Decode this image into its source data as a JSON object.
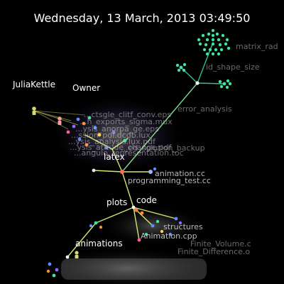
{
  "timestamp": "Wednesday, 13 March, 2013 03:49:50",
  "users": {
    "julia": "JuliaKettle",
    "owner": "Owner"
  },
  "directories": {
    "latex": "latex",
    "plots": "plots",
    "code": "code",
    "animations": "animations"
  },
  "files": {
    "matrix_rad": "matrix_rad",
    "id_shape_size": "id_shape_size",
    "error_analysis": "error_analysis",
    "animation_cc": "animation.cc",
    "programming_test": "programming_test.cc",
    "structures": "structures",
    "animation_cpp": "Animation.cpp",
    "finite_volume": "Finite_Volume.c",
    "finite_difference": "Finite_Difference.o"
  },
  "cluster_text": [
    "...ctsgle_clitf_conv.eps",
    "...h_exports_sigma.mux",
    "...ysis_anorpa_ge.eps",
    "...ssion_pdf.dcdb.lux",
    "...ysis_analysis.lux.pdf",
    "...ysis_atitude_change.pdf",
    "...ed_solution_backup",
    "...angulo_representation.toc"
  ],
  "colors": {
    "background": "#000000",
    "branch": "#cfe870",
    "matrix_branch": "#2fbf90",
    "node_green": "#3fe39a",
    "node_blue": "#5f8bff",
    "node_orange": "#ff8c3a",
    "user_julia": "#d8d870",
    "user_owner": "#f2a0a0"
  }
}
